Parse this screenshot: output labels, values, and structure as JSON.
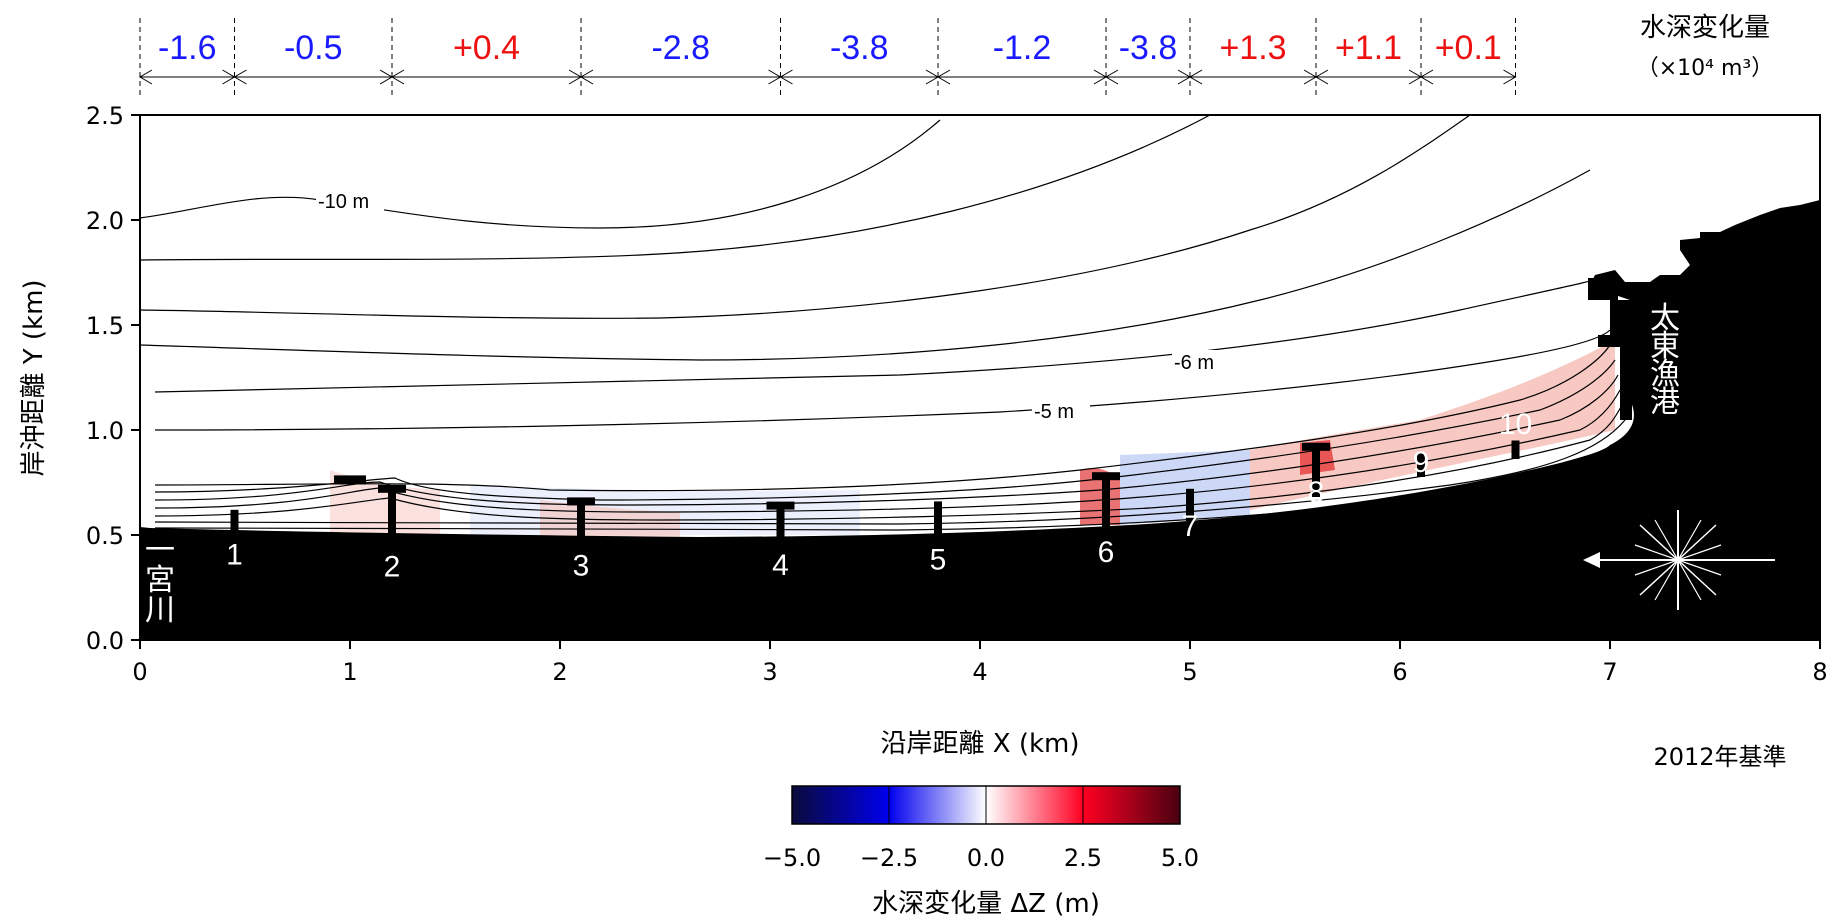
{
  "chart_data": {
    "type": "heatmap",
    "xlabel": "沿岸距離 X (km)",
    "ylabel": "岸沖距離 Y (km)",
    "xlim": [
      0,
      8
    ],
    "ylim": [
      0,
      2.5
    ],
    "x_ticks": [
      "0",
      "1",
      "2",
      "3",
      "4",
      "5",
      "6",
      "7",
      "8"
    ],
    "y_ticks": [
      "0.0",
      "0.5",
      "1.0",
      "1.5",
      "2.0",
      "2.5"
    ],
    "grid": false,
    "top_header": {
      "title_line1": "水深変化量",
      "title_line2": "（×10⁴ m³）",
      "boundaries_km": [
        0,
        0.45,
        1.2,
        2.1,
        3.05,
        3.8,
        4.6,
        5.0,
        5.6,
        6.1,
        6.55
      ],
      "values": [
        "-1.6",
        "-0.5",
        "+0.4",
        "-2.8",
        "-3.8",
        "-1.2",
        "-3.8",
        "+1.3",
        "+1.1",
        "+0.1"
      ],
      "negative_color": "#1a1aff",
      "positive_color": "#ee1111"
    },
    "structures": [
      {
        "label": "1",
        "x": 0.45
      },
      {
        "label": "2",
        "x": 1.2
      },
      {
        "label": "3",
        "x": 2.1
      },
      {
        "label": "4",
        "x": 3.05
      },
      {
        "label": "5",
        "x": 3.8
      },
      {
        "label": "6",
        "x": 4.6
      },
      {
        "label": "7",
        "x": 5.0
      },
      {
        "label": "8",
        "x": 5.6
      },
      {
        "label": "9",
        "x": 6.1
      },
      {
        "label": "10",
        "x": 6.55
      }
    ],
    "river_label": "一宮川",
    "port_label": "太東漁港",
    "contour_labels": [
      "-10 m",
      "-6 m",
      "-5 m"
    ],
    "reference_label": "2012年基準",
    "colorbar": {
      "label": "水深変化量 ΔZ (m)",
      "min": -5.0,
      "max": 5.0,
      "ticks": [
        "−5.0",
        "−2.5",
        "0.0",
        "2.5",
        "5.0"
      ],
      "colors": [
        "#0a0a3c",
        "#0000ee",
        "#ffffff",
        "#ff0022",
        "#4a0010"
      ]
    }
  }
}
